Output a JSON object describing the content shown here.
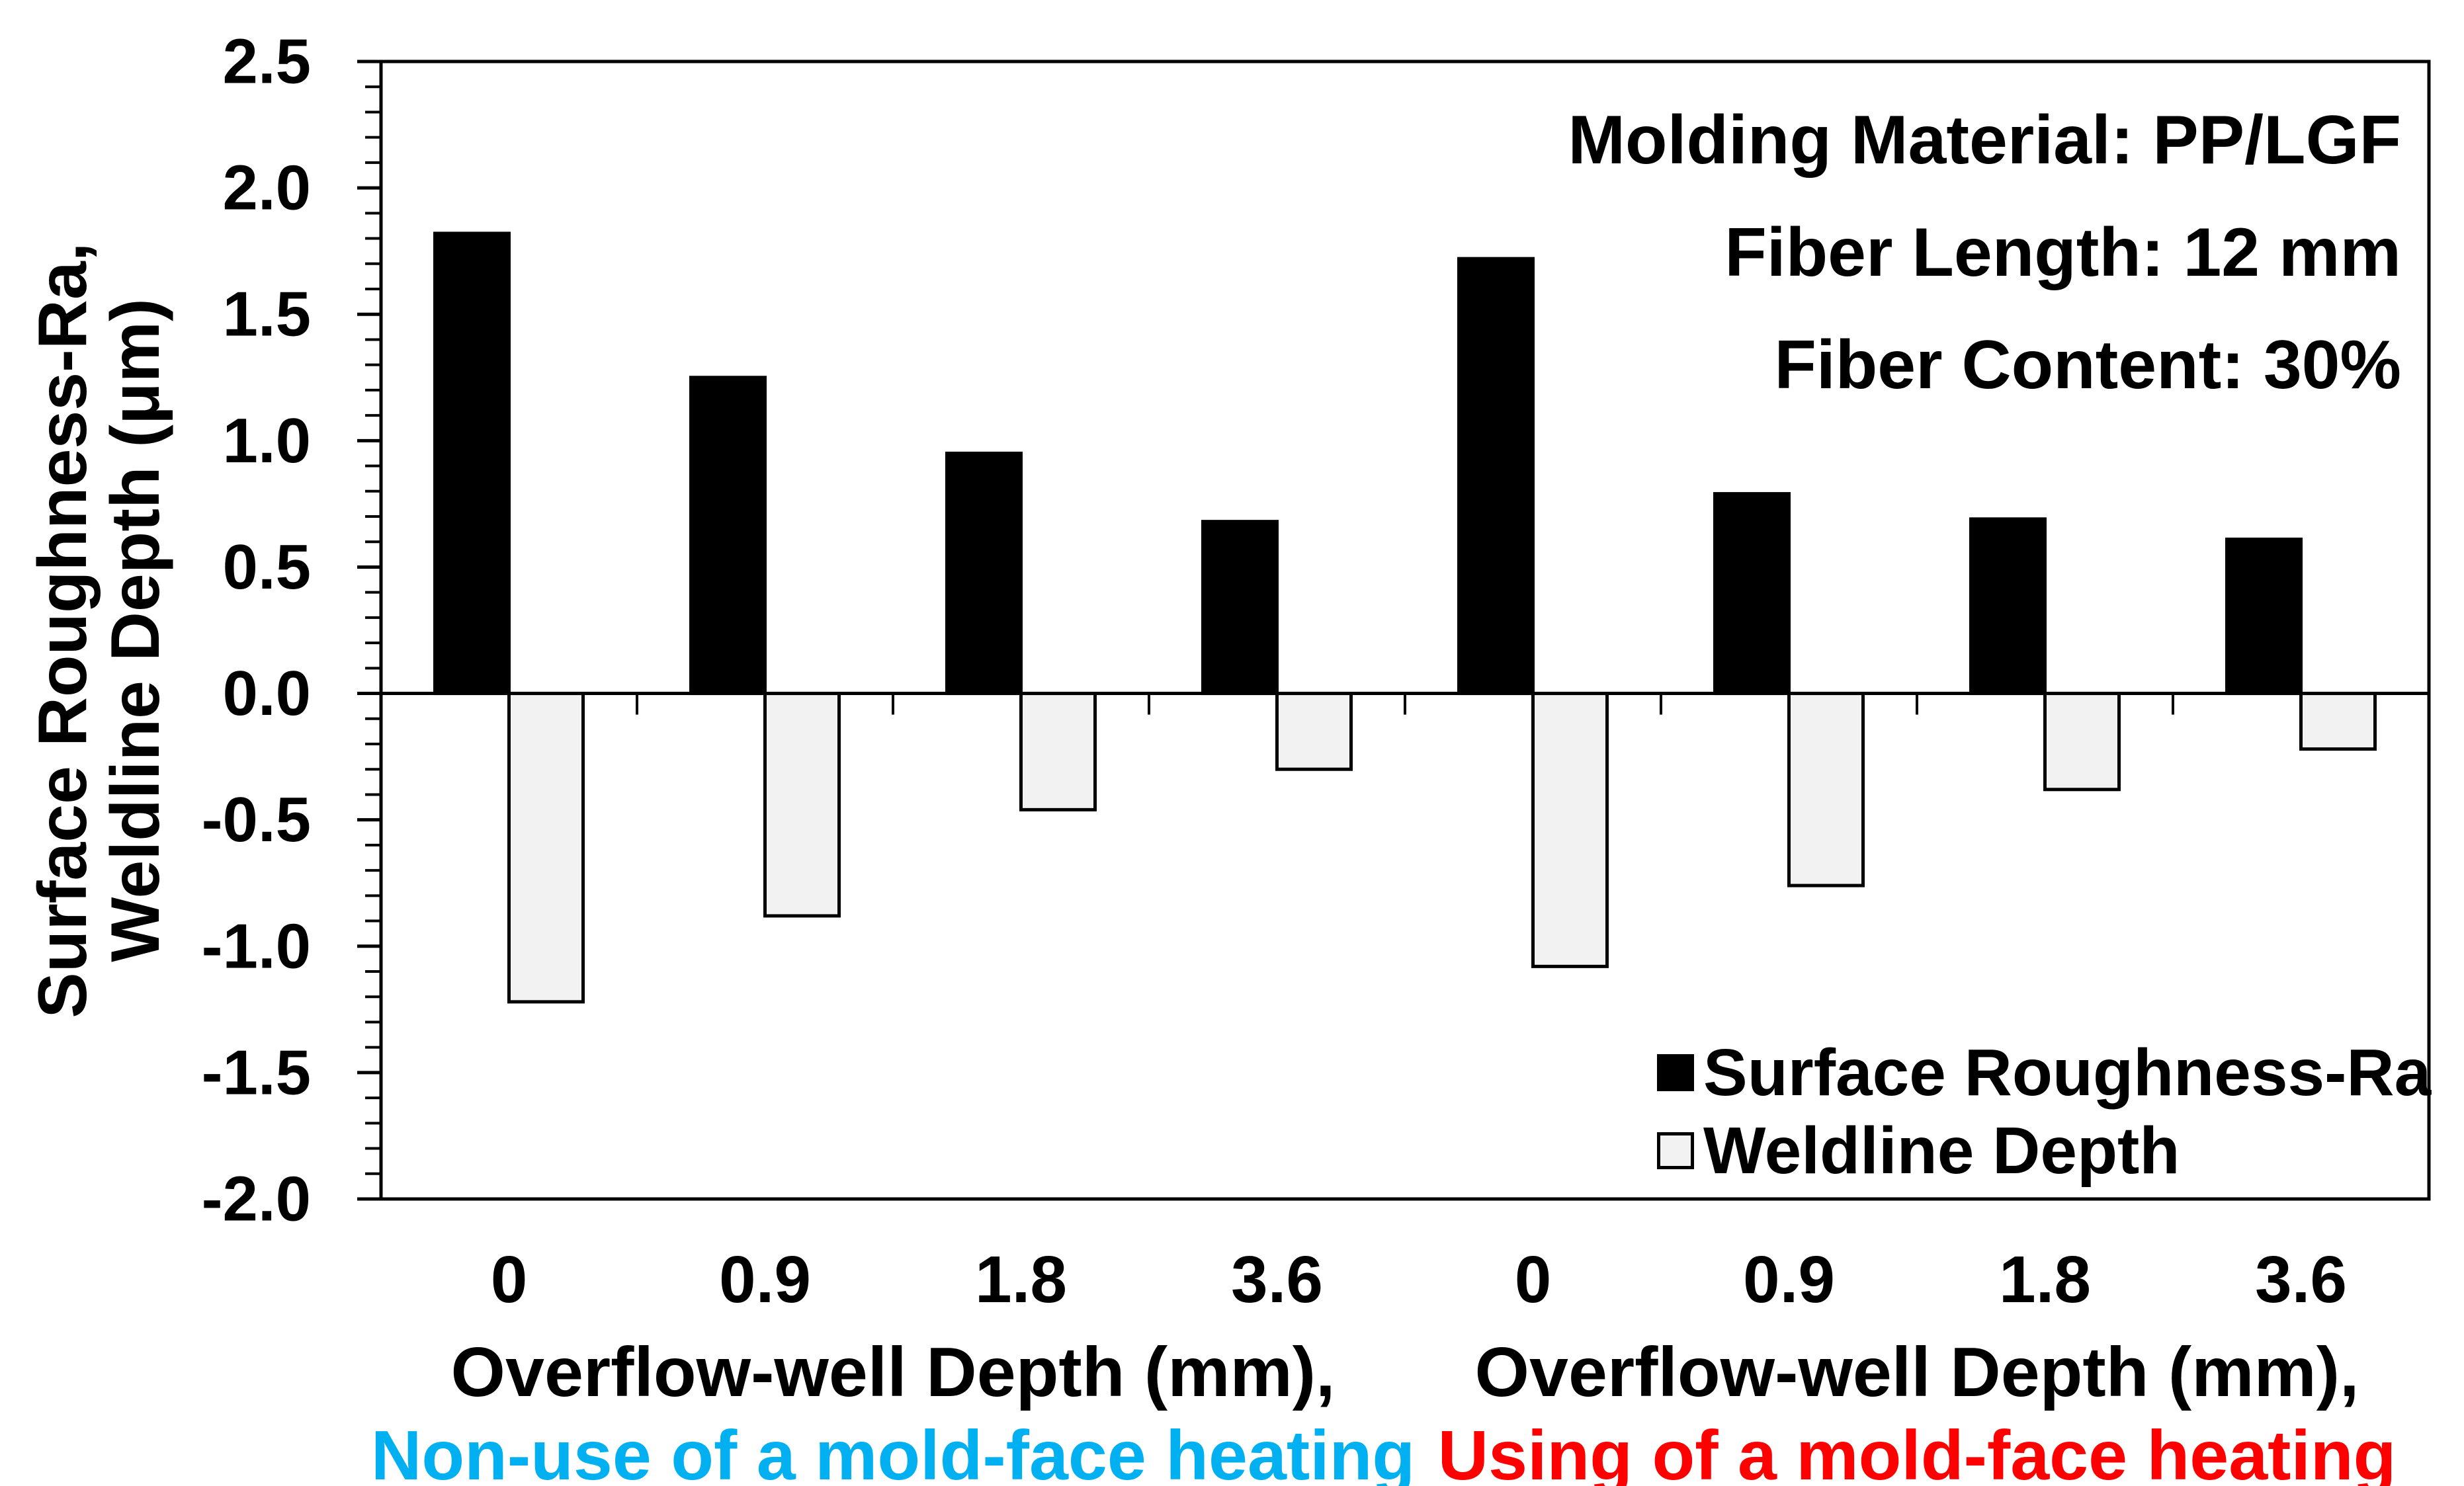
{
  "chart_data": {
    "type": "bar",
    "title": "",
    "ylim": [
      -2.0,
      2.5
    ],
    "y_major_step": 0.5,
    "y_minor_step": 0.1,
    "grid": false,
    "legend_position": "inside-bottom-right",
    "y_axis_title_lines": [
      "Surface Roughness-Ra,",
      "Weldline Depth (μm)"
    ],
    "y_tick_labels": [
      "2.5",
      "2.0",
      "1.5",
      "1.0",
      "0.5",
      "0.0",
      "-0.5",
      "-1.0",
      "-1.5",
      "-2.0"
    ],
    "categories": [
      "0",
      "0.9",
      "1.8",
      "3.6",
      "0",
      "0.9",
      "1.8",
      "3.6"
    ],
    "categories_per_group": 4,
    "series": [
      {
        "name": "Surface Roughness-Ra",
        "fill": "#000000",
        "stroke": "#000000",
        "values": [
          1.82,
          1.25,
          0.95,
          0.68,
          1.72,
          0.79,
          0.69,
          0.61
        ]
      },
      {
        "name": "Weldline Depth",
        "fill": "#F2F2F2",
        "stroke": "#000000",
        "values": [
          -1.22,
          -0.88,
          -0.46,
          -0.3,
          -1.08,
          -0.76,
          -0.38,
          -0.22
        ]
      }
    ],
    "groups": [
      {
        "label": "Overflow-well Depth (mm),",
        "sublabel": "Non-use of a mold-face heating",
        "sublabel_color": "#00B0F0"
      },
      {
        "label": "Overflow-well Depth (mm),",
        "sublabel": "Using of a mold-face heating",
        "sublabel_color": "#FF0000"
      }
    ],
    "annotation_lines": [
      "Molding Material: PP/LGF",
      "Fiber Length: 12 mm",
      "Fiber Content: 30%"
    ],
    "colors": {
      "axis": "#000000",
      "background": "#FFFFFF"
    }
  }
}
